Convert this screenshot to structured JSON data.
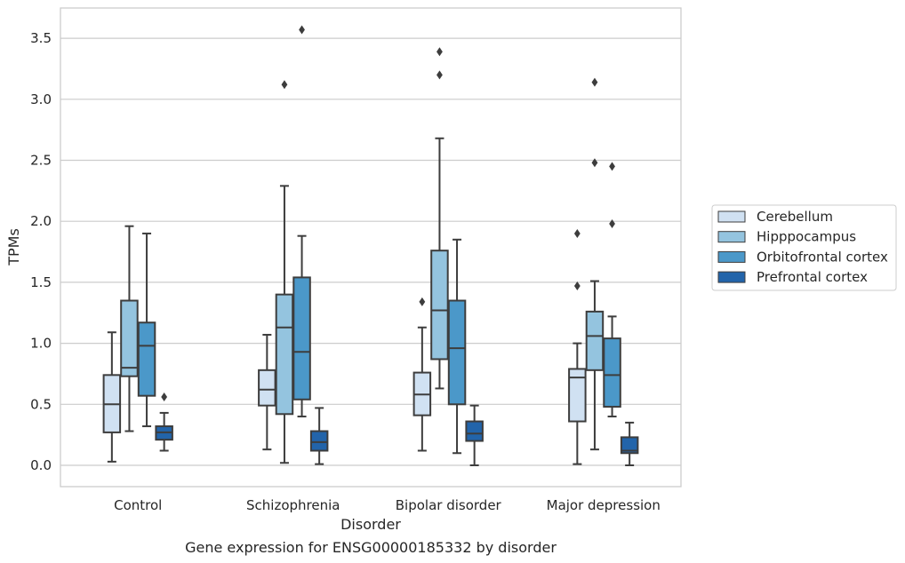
{
  "chart_data": {
    "type": "boxplot",
    "title": "Gene expression for ENSG00000185332 by disorder",
    "xlabel": "Disorder",
    "ylabel": "TPMs",
    "ylim": [
      -0.17,
      3.76
    ],
    "yticks": [
      "0.0",
      "0.5",
      "1.0",
      "1.5",
      "2.0",
      "2.5",
      "3.0",
      "3.5"
    ],
    "grid": "horizontal",
    "legend_position": "right",
    "categories": [
      "Control",
      "Schizophrenia",
      "Bipolar disorder",
      "Major depression"
    ],
    "series": [
      {
        "name": "Cerebellum",
        "color": "#d0e1f2",
        "boxes": [
          {
            "whislo": 0.03,
            "q1": 0.27,
            "med": 0.5,
            "q3": 0.74,
            "whishi": 1.09,
            "fliers": []
          },
          {
            "whislo": 0.13,
            "q1": 0.49,
            "med": 0.62,
            "q3": 0.78,
            "whishi": 1.07,
            "fliers": []
          },
          {
            "whislo": 0.12,
            "q1": 0.41,
            "med": 0.58,
            "q3": 0.76,
            "whishi": 1.13,
            "fliers": [
              1.34
            ]
          },
          {
            "whislo": 0.01,
            "q1": 0.36,
            "med": 0.72,
            "q3": 0.79,
            "whishi": 1.0,
            "fliers": [
              1.47,
              1.9
            ]
          }
        ]
      },
      {
        "name": "Hipppocampus",
        "color": "#94c4df",
        "boxes": [
          {
            "whislo": 0.28,
            "q1": 0.73,
            "med": 0.8,
            "q3": 1.35,
            "whishi": 1.96,
            "fliers": []
          },
          {
            "whislo": 0.02,
            "q1": 0.42,
            "med": 1.13,
            "q3": 1.4,
            "whishi": 2.29,
            "fliers": [
              3.12
            ]
          },
          {
            "whislo": 0.63,
            "q1": 0.87,
            "med": 1.27,
            "q3": 1.76,
            "whishi": 2.68,
            "fliers": [
              3.2,
              3.39
            ]
          },
          {
            "whislo": 0.13,
            "q1": 0.78,
            "med": 1.06,
            "q3": 1.26,
            "whishi": 1.51,
            "fliers": [
              2.48,
              3.14
            ]
          }
        ]
      },
      {
        "name": "Orbitofrontal cortex",
        "color": "#4b98c9",
        "boxes": [
          {
            "whislo": 0.32,
            "q1": 0.57,
            "med": 0.98,
            "q3": 1.17,
            "whishi": 1.9,
            "fliers": []
          },
          {
            "whislo": 0.4,
            "q1": 0.54,
            "med": 0.93,
            "q3": 1.54,
            "whishi": 1.88,
            "fliers": [
              3.57
            ]
          },
          {
            "whislo": 0.1,
            "q1": 0.5,
            "med": 0.96,
            "q3": 1.35,
            "whishi": 1.85,
            "fliers": []
          },
          {
            "whislo": 0.4,
            "q1": 0.48,
            "med": 0.74,
            "q3": 1.04,
            "whishi": 1.22,
            "fliers": [
              1.98,
              2.45
            ]
          }
        ]
      },
      {
        "name": "Prefrontal cortex",
        "color": "#2264aa",
        "boxes": [
          {
            "whislo": 0.12,
            "q1": 0.21,
            "med": 0.27,
            "q3": 0.32,
            "whishi": 0.43,
            "fliers": [
              0.56
            ]
          },
          {
            "whislo": 0.01,
            "q1": 0.12,
            "med": 0.19,
            "q3": 0.28,
            "whishi": 0.47,
            "fliers": []
          },
          {
            "whislo": 0.0,
            "q1": 0.2,
            "med": 0.26,
            "q3": 0.36,
            "whishi": 0.49,
            "fliers": []
          },
          {
            "whislo": 0.0,
            "q1": 0.1,
            "med": 0.12,
            "q3": 0.23,
            "whishi": 0.35,
            "fliers": []
          }
        ]
      }
    ]
  }
}
